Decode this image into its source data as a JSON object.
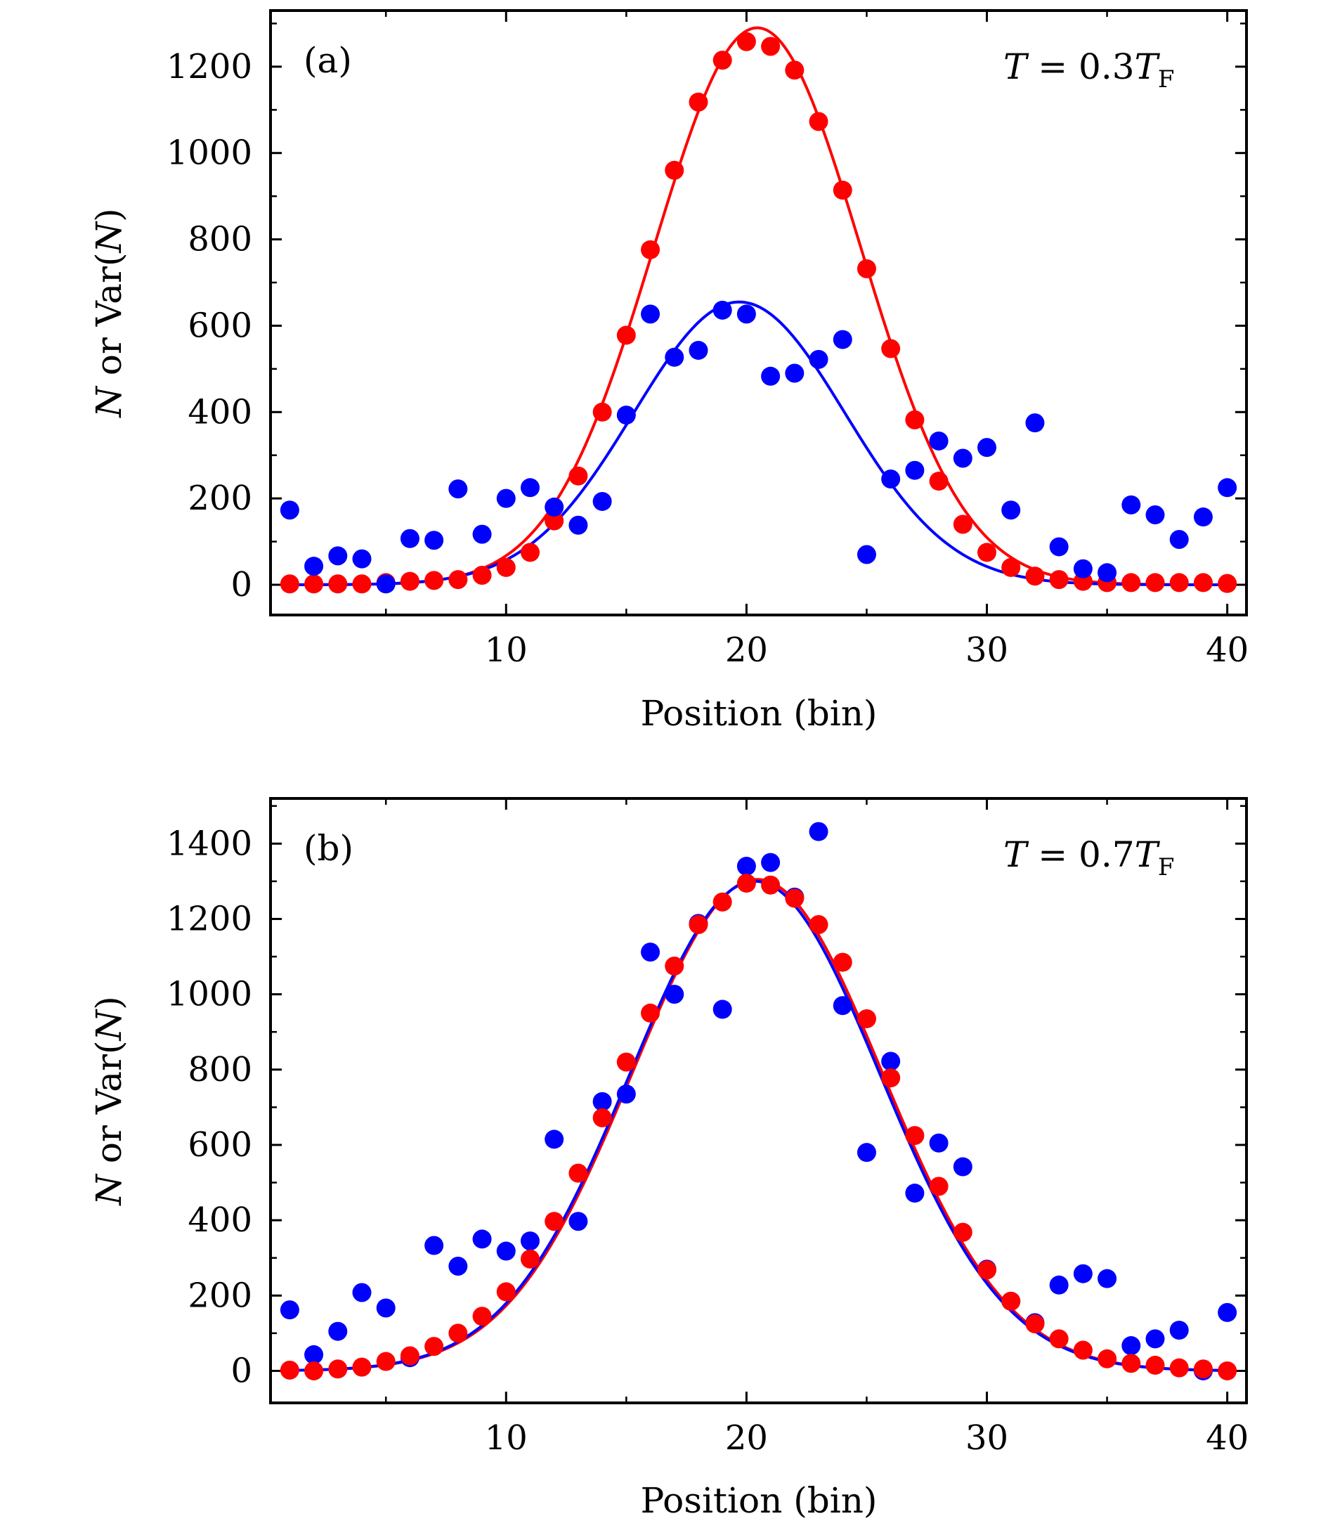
{
  "chart_data": [
    {
      "type": "scatter",
      "panel_label": "(a)",
      "annotation": {
        "italic": "T",
        "mid": " = 0.3",
        "italic2": "T",
        "sub": "F"
      },
      "xlabel": "Position (bin)",
      "ylabel": {
        "p1": "N",
        "p2": " or Var(",
        "p3": "N",
        "p4": ")"
      },
      "xlim": [
        0.2,
        40.8
      ],
      "ylim": [
        -70,
        1330
      ],
      "xticks": [
        10,
        20,
        30,
        40
      ],
      "xtick_labels": [
        "10",
        "20",
        "30",
        "40"
      ],
      "yticks": [
        0,
        200,
        400,
        600,
        800,
        1000,
        1200
      ],
      "ytick_labels": [
        "0",
        "200",
        "400",
        "600",
        "800",
        "1000",
        "1200"
      ],
      "grid": false,
      "series": [
        {
          "color": "#ff0000",
          "x": [
            1,
            2,
            3,
            4,
            5,
            6,
            7,
            8,
            9,
            10,
            11,
            12,
            13,
            14,
            15,
            16,
            17,
            18,
            19,
            20,
            21,
            22,
            23,
            24,
            25,
            26,
            27,
            28,
            29,
            30,
            31,
            32,
            33,
            34,
            35,
            36,
            37,
            38,
            39,
            40
          ],
          "values": [
            2,
            2,
            2,
            2,
            5,
            8,
            10,
            12,
            22,
            40,
            75,
            148,
            252,
            400,
            578,
            776,
            960,
            1118,
            1215,
            1258,
            1247,
            1192,
            1073,
            914,
            732,
            547,
            382,
            240,
            140,
            75,
            40,
            20,
            12,
            8,
            5,
            5,
            5,
            5,
            5,
            3
          ]
        },
        {
          "color": "#0000ff",
          "x": [
            1,
            2,
            3,
            4,
            5,
            6,
            7,
            8,
            9,
            10,
            11,
            12,
            13,
            14,
            15,
            16,
            17,
            18,
            19,
            20,
            21,
            22,
            23,
            24,
            25,
            26,
            27,
            28,
            29,
            30,
            31,
            32,
            33,
            34,
            35,
            36,
            37,
            38,
            39,
            40
          ],
          "values": [
            173,
            43,
            67,
            60,
            2,
            107,
            103,
            222,
            117,
            200,
            225,
            180,
            138,
            193,
            393,
            627,
            527,
            543,
            636,
            627,
            483,
            490,
            522,
            568,
            70,
            245,
            265,
            333,
            293,
            318,
            173,
            375,
            88,
            37,
            28,
            185,
            162,
            105,
            157,
            225
          ]
        }
      ],
      "fits": [
        {
          "color": "#ff0000",
          "amplitude": 1290,
          "center": 20.45,
          "sigma": 4.3
        },
        {
          "color": "#0000ff",
          "amplitude": 655,
          "center": 19.7,
          "sigma": 4.4
        }
      ]
    },
    {
      "type": "scatter",
      "panel_label": "(b)",
      "annotation": {
        "italic": "T",
        "mid": " = 0.7",
        "italic2": "T",
        "sub": "F"
      },
      "xlabel": "Position (bin)",
      "ylabel": {
        "p1": "N",
        "p2": " or Var(",
        "p3": "N",
        "p4": ")"
      },
      "xlim": [
        0.2,
        40.8
      ],
      "ylim": [
        -85,
        1520
      ],
      "xticks": [
        10,
        20,
        30,
        40
      ],
      "xtick_labels": [
        "10",
        "20",
        "30",
        "40"
      ],
      "yticks": [
        0,
        200,
        400,
        600,
        800,
        1000,
        1200,
        1400
      ],
      "ytick_labels": [
        "0",
        "200",
        "400",
        "600",
        "800",
        "1000",
        "1200",
        "1400"
      ],
      "grid": false,
      "series": [
        {
          "color": "#0000ff",
          "x": [
            1,
            2,
            3,
            4,
            5,
            6,
            7,
            8,
            9,
            10,
            11,
            12,
            13,
            14,
            15,
            16,
            17,
            18,
            19,
            20,
            21,
            22,
            23,
            24,
            25,
            26,
            27,
            28,
            29,
            30,
            31,
            32,
            33,
            34,
            35,
            36,
            37,
            38,
            39,
            40
          ],
          "values": [
            162,
            43,
            105,
            208,
            167,
            35,
            333,
            278,
            350,
            318,
            345,
            615,
            397,
            715,
            735,
            1112,
            1000,
            1188,
            960,
            1340,
            1350,
            1258,
            1432,
            970,
            580,
            822,
            472,
            605,
            542,
            270,
            185,
            128,
            228,
            258,
            245,
            67,
            85,
            108,
            0,
            155
          ]
        },
        {
          "color": "#ff0000",
          "x": [
            1,
            2,
            3,
            4,
            5,
            6,
            7,
            8,
            9,
            10,
            11,
            12,
            13,
            14,
            15,
            16,
            17,
            18,
            19,
            20,
            21,
            22,
            23,
            24,
            25,
            26,
            27,
            28,
            29,
            30,
            31,
            32,
            33,
            34,
            35,
            36,
            37,
            38,
            39,
            40
          ],
          "values": [
            2,
            0,
            5,
            10,
            25,
            40,
            65,
            100,
            145,
            210,
            297,
            397,
            525,
            672,
            820,
            950,
            1075,
            1185,
            1245,
            1295,
            1290,
            1255,
            1185,
            1085,
            935,
            778,
            625,
            490,
            368,
            268,
            185,
            125,
            85,
            55,
            32,
            20,
            15,
            8,
            5,
            0
          ]
        }
      ],
      "fits": [
        {
          "color": "#ff0000",
          "amplitude": 1305,
          "center": 20.45,
          "sigma": 5.2
        },
        {
          "color": "#0000ff",
          "amplitude": 1300,
          "center": 20.35,
          "sigma": 5.2
        }
      ]
    }
  ]
}
